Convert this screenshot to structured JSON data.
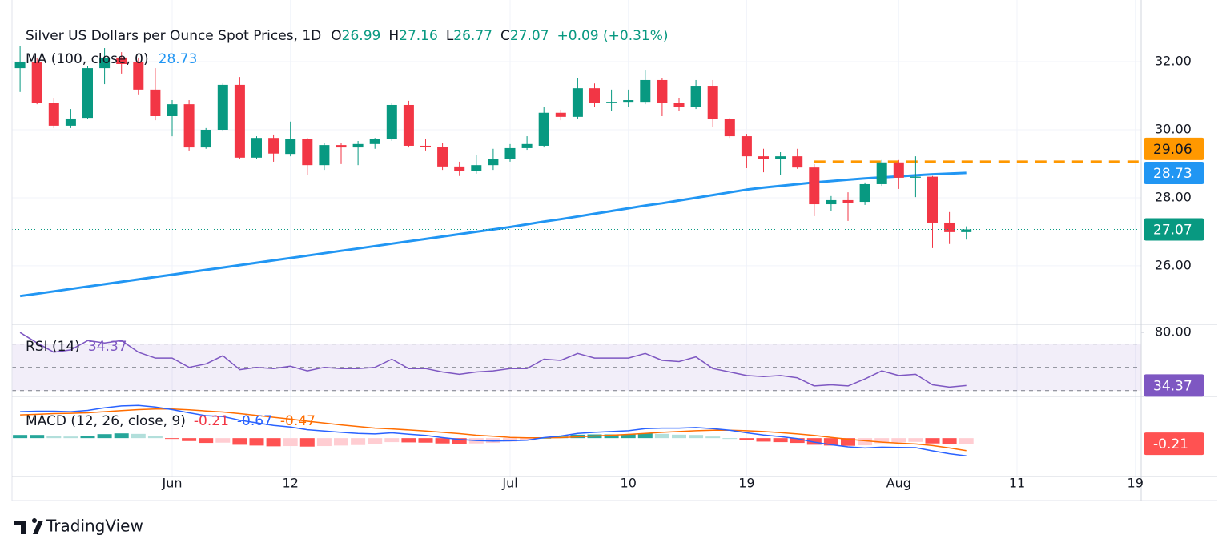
{
  "chart_data": {
    "type": "candlestick",
    "title": "Silver US Dollars per Ounce Spot Prices, 1D",
    "ohlc_labels": [
      "O",
      "H",
      "L",
      "C"
    ],
    "change": "+0.09 (+0.31%)",
    "categories": [
      null,
      null,
      null,
      null,
      null,
      null,
      null,
      null,
      null,
      "Jun",
      null,
      null,
      null,
      null,
      null,
      null,
      "12",
      null,
      null,
      null,
      null,
      null,
      null,
      null,
      null,
      null,
      null,
      null,
      null,
      "Jul",
      null,
      null,
      null,
      null,
      null,
      null,
      "10",
      null,
      null,
      null,
      null,
      null,
      null,
      "19",
      null,
      null,
      null,
      null,
      null,
      null,
      null,
      null,
      "Aug",
      null,
      null,
      null,
      null,
      null,
      null,
      "11",
      null,
      null,
      null,
      null,
      null,
      null,
      "19"
    ],
    "open": [
      31.81,
      32.0,
      30.8,
      30.12,
      30.35,
      31.81,
      32.12,
      32.0,
      31.18,
      30.4,
      30.75,
      29.48,
      30.0,
      31.32,
      29.18,
      29.76,
      29.29,
      29.72,
      28.96,
      29.55,
      29.48,
      29.58,
      29.72,
      30.73,
      29.53,
      29.5,
      28.92,
      28.78,
      28.96,
      29.15,
      29.46,
      29.53,
      30.5,
      30.38,
      31.22,
      30.78,
      30.82,
      30.82,
      31.46,
      30.8,
      30.68,
      31.27,
      30.31,
      29.81,
      29.22,
      29.13,
      29.22,
      28.89,
      27.81,
      27.93,
      27.88,
      28.4,
      29.04,
      28.59,
      28.62,
      27.27,
      26.99,
      null,
      null,
      null,
      null,
      null,
      null,
      null,
      null,
      null,
      null
    ],
    "high": [
      32.47,
      32.12,
      30.94,
      30.61,
      31.88,
      32.4,
      32.28,
      32.12,
      31.81,
      30.87,
      30.87,
      30.05,
      31.36,
      31.55,
      29.81,
      29.86,
      30.24,
      29.76,
      29.62,
      29.62,
      29.67,
      29.76,
      30.78,
      30.85,
      29.72,
      29.62,
      29.06,
      29.25,
      29.44,
      29.58,
      29.81,
      30.68,
      30.59,
      31.51,
      31.36,
      31.18,
      31.18,
      31.74,
      31.51,
      30.94,
      31.46,
      31.46,
      30.35,
      29.88,
      29.44,
      29.34,
      29.44,
      28.99,
      28.05,
      28.16,
      28.45,
      29.11,
      29.11,
      29.22,
      28.64,
      27.58,
      27.16,
      null,
      null,
      null,
      null,
      null,
      null,
      null,
      null,
      null,
      null
    ],
    "low": [
      31.11,
      30.75,
      30.05,
      30.05,
      30.33,
      31.34,
      31.65,
      31.04,
      30.28,
      29.81,
      29.39,
      29.44,
      29.95,
      29.15,
      29.13,
      29.06,
      29.22,
      28.68,
      28.82,
      28.99,
      28.96,
      29.44,
      29.67,
      29.48,
      29.39,
      28.82,
      28.64,
      28.71,
      28.82,
      29.06,
      29.41,
      29.48,
      30.28,
      30.33,
      30.68,
      30.56,
      30.68,
      30.75,
      30.4,
      30.56,
      30.61,
      30.09,
      29.76,
      28.87,
      28.75,
      28.68,
      28.85,
      27.46,
      27.6,
      27.32,
      27.79,
      28.35,
      28.26,
      28.02,
      26.52,
      26.64,
      26.77,
      null,
      null,
      null,
      null,
      null,
      null,
      null,
      null,
      null,
      null
    ],
    "close": [
      32.0,
      30.8,
      30.12,
      30.33,
      31.81,
      32.12,
      31.93,
      31.18,
      30.4,
      30.75,
      29.48,
      30.0,
      31.32,
      29.18,
      29.76,
      29.3,
      29.72,
      28.96,
      29.55,
      29.48,
      29.58,
      29.72,
      30.73,
      29.53,
      29.5,
      28.92,
      28.78,
      28.96,
      29.15,
      29.46,
      29.58,
      30.5,
      30.38,
      31.22,
      30.78,
      30.82,
      30.87,
      31.46,
      30.8,
      30.68,
      31.27,
      30.31,
      29.81,
      29.22,
      29.13,
      29.22,
      28.89,
      27.81,
      27.93,
      27.84,
      28.4,
      29.04,
      28.59,
      28.62,
      27.27,
      26.99,
      27.07,
      null,
      null,
      null,
      null,
      null,
      null,
      null,
      null,
      null,
      null
    ],
    "colors": {
      "up": "#089981",
      "down": "#f23645"
    },
    "ylim": [
      24.28,
      33.46
    ],
    "yticks": [
      {
        "value": 26,
        "label": "26.00"
      },
      {
        "value": 28,
        "label": "28.00"
      },
      {
        "value": 30,
        "label": "30.00"
      },
      {
        "value": 32,
        "label": "32.00"
      }
    ],
    "grid": true,
    "ma": {
      "name": "MA (100, close, 0)",
      "color": "#2196f3",
      "values": [
        25.11,
        25.18,
        25.25,
        25.32,
        25.39,
        25.46,
        25.53,
        25.6,
        25.67,
        25.74,
        25.81,
        25.88,
        25.95,
        26.02,
        26.09,
        26.16,
        26.23,
        26.3,
        26.37,
        26.44,
        26.51,
        26.58,
        26.65,
        26.72,
        26.79,
        26.86,
        26.93,
        27.0,
        27.07,
        27.14,
        27.22,
        27.3,
        27.37,
        27.45,
        27.53,
        27.61,
        27.69,
        27.77,
        27.84,
        27.92,
        28.0,
        28.08,
        28.16,
        28.24,
        28.3,
        28.35,
        28.4,
        28.45,
        28.49,
        28.53,
        28.57,
        28.6,
        28.63,
        28.66,
        28.69,
        28.71,
        28.73,
        null,
        null,
        null,
        null,
        null,
        null,
        null,
        null,
        null,
        null
      ]
    },
    "level": {
      "value": 29.06,
      "color": "#ff9800"
    },
    "rsi": {
      "name": "RSI (14)",
      "color": "#7e57c2",
      "ylim": [
        25,
        87
      ],
      "yticks": [
        {
          "value": 80,
          "label": "80.00"
        }
      ],
      "levels": [
        70,
        50,
        30
      ],
      "values": [
        80,
        71,
        63,
        65,
        73,
        71,
        73,
        63,
        58,
        58,
        50,
        53,
        60,
        48,
        50,
        49,
        51,
        47,
        50,
        49,
        49,
        50,
        57,
        49,
        49,
        46,
        44,
        46,
        47,
        49,
        49,
        57,
        56,
        62,
        58,
        58,
        58,
        62,
        56,
        55,
        59,
        49,
        46,
        43,
        42,
        43,
        41,
        34,
        35,
        34,
        40,
        47,
        43,
        44,
        35,
        33,
        34.37,
        null,
        null,
        null,
        null,
        null,
        null,
        null,
        null,
        null,
        null
      ]
    },
    "macd": {
      "name": "MACD (12, 26, close, 9)",
      "ylim": [
        -1.45,
        1.58
      ],
      "histogram": {
        "colors": [
          "#26a69a",
          "#b2dfdb",
          "#ffcdd2",
          "#ff5252"
        ],
        "values": [
          0.12,
          0.12,
          0.09,
          0.06,
          0.09,
          0.15,
          0.18,
          0.16,
          0.08,
          -0.02,
          -0.11,
          -0.18,
          -0.17,
          -0.25,
          -0.28,
          -0.31,
          -0.3,
          -0.32,
          -0.3,
          -0.28,
          -0.26,
          -0.22,
          -0.15,
          -0.16,
          -0.17,
          -0.2,
          -0.22,
          -0.2,
          -0.18,
          -0.13,
          -0.09,
          0.01,
          0.06,
          0.13,
          0.14,
          0.14,
          0.14,
          0.18,
          0.16,
          0.13,
          0.12,
          0.06,
          0.0,
          -0.08,
          -0.13,
          -0.15,
          -0.18,
          -0.25,
          -0.28,
          -0.29,
          -0.27,
          -0.19,
          -0.16,
          -0.14,
          -0.2,
          -0.22,
          -0.21,
          null,
          null,
          null,
          null,
          null,
          null,
          null,
          null,
          null,
          null
        ]
      },
      "macd": {
        "color": "#2962ff",
        "values": [
          1.0,
          1.02,
          1.02,
          1.0,
          1.05,
          1.15,
          1.22,
          1.24,
          1.18,
          1.08,
          0.96,
          0.85,
          0.82,
          0.68,
          0.58,
          0.48,
          0.42,
          0.32,
          0.27,
          0.22,
          0.18,
          0.16,
          0.2,
          0.15,
          0.1,
          0.02,
          -0.05,
          -0.09,
          -0.11,
          -0.1,
          -0.08,
          0.02,
          0.08,
          0.18,
          0.22,
          0.25,
          0.28,
          0.36,
          0.38,
          0.38,
          0.4,
          0.36,
          0.3,
          0.2,
          0.12,
          0.06,
          -0.02,
          -0.15,
          -0.25,
          -0.33,
          -0.37,
          -0.34,
          -0.35,
          -0.36,
          -0.48,
          -0.59,
          -0.67,
          null,
          null,
          null,
          null,
          null,
          null,
          null,
          null,
          null,
          null
        ]
      },
      "signal": {
        "color": "#ff6d00",
        "values": [
          0.88,
          0.9,
          0.93,
          0.94,
          0.96,
          1.0,
          1.04,
          1.08,
          1.1,
          1.1,
          1.07,
          1.03,
          0.99,
          0.93,
          0.86,
          0.79,
          0.72,
          0.64,
          0.57,
          0.5,
          0.44,
          0.38,
          0.35,
          0.31,
          0.27,
          0.22,
          0.17,
          0.11,
          0.07,
          0.03,
          0.01,
          0.01,
          0.02,
          0.05,
          0.08,
          0.11,
          0.14,
          0.18,
          0.22,
          0.25,
          0.28,
          0.3,
          0.3,
          0.28,
          0.25,
          0.21,
          0.16,
          0.1,
          0.03,
          -0.04,
          -0.1,
          -0.15,
          -0.19,
          -0.22,
          -0.28,
          -0.37,
          -0.47,
          null,
          null,
          null,
          null,
          null,
          null,
          null,
          null,
          null,
          null
        ]
      }
    },
    "watermark": "TradingView"
  }
}
